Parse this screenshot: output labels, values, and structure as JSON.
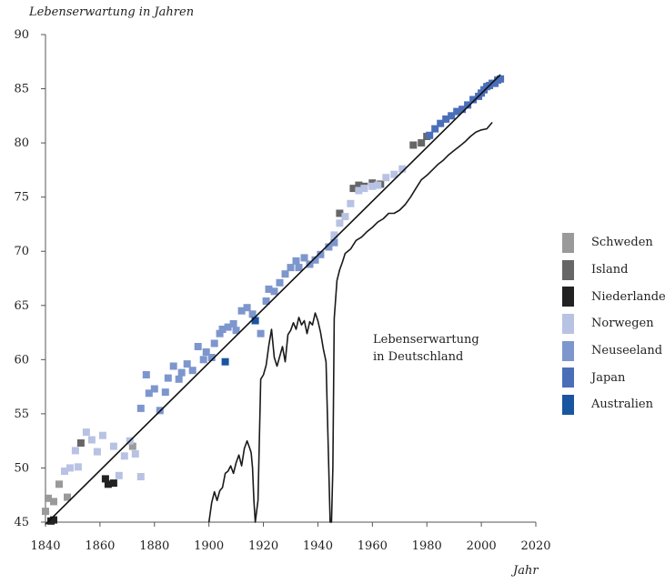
{
  "chart_data": {
    "type": "scatter",
    "ylabel": "Lebenserwartung in Jahren",
    "xlabel": "Jahr",
    "xlim": [
      1840,
      2020
    ],
    "ylim": [
      45,
      90
    ],
    "xticks": [
      "1840",
      "1860",
      "1880",
      "1900",
      "1920",
      "1940",
      "1960",
      "1980",
      "2000",
      "2020"
    ],
    "yticks": [
      "90",
      "85",
      "80",
      "75",
      "70",
      "65",
      "60",
      "55",
      "50",
      "45"
    ],
    "annotation": [
      "Lebenserwartung",
      "in Deutschland"
    ],
    "legend_position": "right",
    "series": [
      {
        "name": "Schweden",
        "color": "#9a9a9a",
        "x": [
          1840,
          1841,
          1843,
          1845,
          1848,
          1872
        ],
        "y": [
          46.0,
          47.2,
          46.9,
          48.5,
          47.3,
          52.0
        ]
      },
      {
        "name": "Island",
        "color": "#666666",
        "x": [
          1853,
          1948,
          1953,
          1955,
          1957,
          1960,
          1963,
          1975,
          1978,
          1980
        ],
        "y": [
          52.3,
          73.5,
          75.8,
          76.1,
          76.0,
          76.3,
          76.2,
          79.8,
          80.0,
          80.6
        ]
      },
      {
        "name": "Niederlande",
        "color": "#222222",
        "x": [
          1842,
          1843,
          1862,
          1863,
          1865
        ],
        "y": [
          45.1,
          45.2,
          49.0,
          48.5,
          48.6
        ]
      },
      {
        "name": "Norwegen",
        "color": "#b8c2e3",
        "x": [
          1847,
          1849,
          1851,
          1852,
          1855,
          1857,
          1859,
          1861,
          1865,
          1867,
          1869,
          1871,
          1873,
          1875,
          1946,
          1948,
          1950,
          1952,
          1955,
          1957,
          1960,
          1962,
          1965,
          1968,
          1971
        ],
        "y": [
          49.7,
          50.0,
          51.6,
          50.1,
          53.3,
          52.6,
          51.5,
          53.0,
          52.0,
          49.3,
          51.1,
          52.5,
          51.3,
          49.2,
          71.5,
          72.6,
          73.2,
          74.4,
          75.6,
          75.8,
          76.0,
          76.1,
          76.8,
          77.1,
          77.6
        ]
      },
      {
        "name": "Neuseeland",
        "color": "#7d96cd",
        "x": [
          1875,
          1877,
          1878,
          1880,
          1882,
          1884,
          1885,
          1887,
          1889,
          1890,
          1892,
          1894,
          1896,
          1898,
          1899,
          1901,
          1902,
          1904,
          1905,
          1907,
          1909,
          1910,
          1912,
          1914,
          1916,
          1917,
          1919,
          1921,
          1922,
          1924,
          1926,
          1928,
          1930,
          1932,
          1933,
          1935,
          1937,
          1939,
          1941,
          1944,
          1946
        ],
        "y": [
          55.5,
          58.6,
          56.9,
          57.3,
          55.3,
          57.0,
          58.3,
          59.4,
          58.2,
          58.8,
          59.6,
          59.0,
          61.2,
          60.0,
          60.7,
          60.2,
          61.5,
          62.4,
          62.8,
          63.0,
          63.3,
          62.7,
          64.5,
          64.8,
          64.2,
          63.6,
          62.4,
          65.4,
          66.5,
          66.3,
          67.1,
          67.9,
          68.5,
          69.1,
          68.5,
          69.4,
          68.8,
          69.2,
          69.7,
          70.4,
          70.8
        ]
      },
      {
        "name": "Japan",
        "color": "#4a6eb8",
        "x": [
          1981,
          1983,
          1985,
          1987,
          1989,
          1991,
          1993,
          1995,
          1997,
          1999,
          2000,
          2001,
          2002,
          2003,
          2004,
          2005,
          2006,
          2007
        ],
        "y": [
          80.7,
          81.3,
          81.8,
          82.2,
          82.5,
          82.9,
          83.1,
          83.5,
          84.0,
          84.3,
          84.6,
          84.9,
          85.2,
          85.3,
          85.5,
          85.5,
          85.8,
          85.9
        ]
      },
      {
        "name": "Australien",
        "color": "#1a55a0",
        "x": [
          1906,
          1917
        ],
        "y": [
          59.8,
          63.6
        ]
      }
    ],
    "trend_line": {
      "x": [
        1840,
        2007
      ],
      "y": [
        44.8,
        86.3
      ]
    },
    "germany_line": {
      "x": [
        1900,
        1901,
        1902,
        1903,
        1904,
        1905,
        1906,
        1907,
        1908,
        1909,
        1910,
        1911,
        1912,
        1913,
        1914,
        1915,
        1915.5,
        1916,
        1916.5,
        1917,
        1918,
        1919,
        1920,
        1921,
        1922,
        1923,
        1924,
        1925,
        1926,
        1927,
        1928,
        1929,
        1930,
        1931,
        1932,
        1933,
        1934,
        1935,
        1936,
        1937,
        1938,
        1939,
        1940,
        1941,
        1942,
        1943,
        1944,
        1944.5,
        1945,
        1945.5,
        1946,
        1947,
        1948,
        1949,
        1950,
        1952,
        1954,
        1956,
        1958,
        1960,
        1962,
        1964,
        1966,
        1968,
        1970,
        1972,
        1974,
        1976,
        1978,
        1980,
        1982,
        1984,
        1986,
        1988,
        1990,
        1992,
        1994,
        1996,
        1998,
        2000,
        2002,
        2004
      ],
      "y": [
        45.0,
        46.8,
        47.8,
        47.0,
        47.9,
        48.2,
        49.5,
        49.7,
        50.2,
        49.5,
        50.5,
        51.2,
        50.2,
        51.8,
        52.5,
        51.8,
        51.4,
        50.0,
        47.0,
        45.0,
        47.0,
        58.2,
        58.6,
        59.5,
        61.3,
        62.8,
        60.2,
        59.4,
        60.3,
        61.2,
        59.8,
        62.3,
        62.7,
        63.4,
        62.8,
        63.9,
        63.2,
        63.6,
        62.4,
        63.5,
        63.2,
        64.3,
        63.6,
        62.5,
        61.0,
        59.8,
        50.0,
        45.0,
        45.0,
        50.0,
        63.8,
        67.3,
        68.3,
        69.0,
        69.8,
        70.2,
        71.0,
        71.3,
        71.8,
        72.2,
        72.7,
        73.0,
        73.5,
        73.5,
        73.8,
        74.3,
        75.0,
        75.8,
        76.6,
        77.0,
        77.5,
        78.0,
        78.4,
        78.9,
        79.3,
        79.7,
        80.1,
        80.6,
        81.0,
        81.2,
        81.3,
        81.9
      ]
    }
  }
}
